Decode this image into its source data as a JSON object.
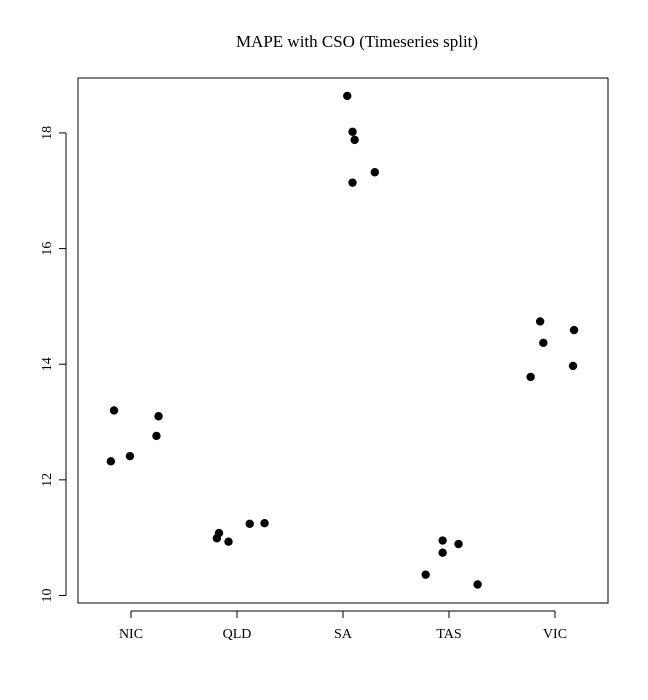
{
  "chart_data": {
    "type": "scatter",
    "title": "MAPE with CSO (Timeseries split)",
    "xlabel": "",
    "ylabel": "",
    "categories": [
      "NIC",
      "QLD",
      "SA",
      "TAS",
      "VIC"
    ],
    "x_range": [
      0.5,
      5.5
    ],
    "ylim": [
      9.87,
      18.95
    ],
    "yticks": [
      10,
      12,
      14,
      16,
      18
    ],
    "grid": false,
    "legend": "none",
    "point_color": "#000000",
    "points": [
      {
        "category": "NIC",
        "x": 0.81,
        "y": 12.32
      },
      {
        "category": "NIC",
        "x": 0.84,
        "y": 13.2
      },
      {
        "category": "NIC",
        "x": 0.99,
        "y": 12.41
      },
      {
        "category": "NIC",
        "x": 1.24,
        "y": 12.76
      },
      {
        "category": "NIC",
        "x": 1.26,
        "y": 13.1
      },
      {
        "category": "QLD",
        "x": 1.81,
        "y": 10.99
      },
      {
        "category": "QLD",
        "x": 1.83,
        "y": 11.08
      },
      {
        "category": "QLD",
        "x": 1.92,
        "y": 10.93
      },
      {
        "category": "QLD",
        "x": 2.12,
        "y": 11.24
      },
      {
        "category": "QLD",
        "x": 2.26,
        "y": 11.25
      },
      {
        "category": "SA",
        "x": 3.04,
        "y": 18.64
      },
      {
        "category": "SA",
        "x": 3.09,
        "y": 18.02
      },
      {
        "category": "SA",
        "x": 3.11,
        "y": 17.88
      },
      {
        "category": "SA",
        "x": 3.09,
        "y": 17.14
      },
      {
        "category": "SA",
        "x": 3.3,
        "y": 17.32
      },
      {
        "category": "TAS",
        "x": 3.78,
        "y": 10.36
      },
      {
        "category": "TAS",
        "x": 3.94,
        "y": 10.95
      },
      {
        "category": "TAS",
        "x": 3.94,
        "y": 10.74
      },
      {
        "category": "TAS",
        "x": 4.09,
        "y": 10.89
      },
      {
        "category": "TAS",
        "x": 4.27,
        "y": 10.19
      },
      {
        "category": "VIC",
        "x": 4.77,
        "y": 13.78
      },
      {
        "category": "VIC",
        "x": 4.86,
        "y": 14.74
      },
      {
        "category": "VIC",
        "x": 4.89,
        "y": 14.37
      },
      {
        "category": "VIC",
        "x": 5.17,
        "y": 13.97
      },
      {
        "category": "VIC",
        "x": 5.18,
        "y": 14.59
      }
    ]
  }
}
